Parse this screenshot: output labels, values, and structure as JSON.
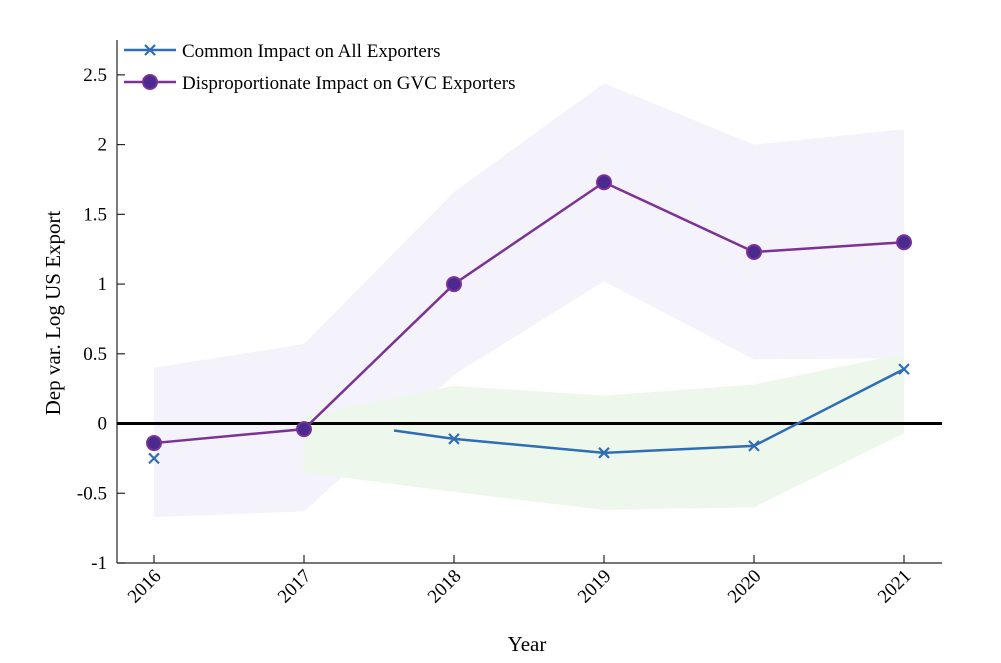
{
  "chart_data": {
    "type": "line",
    "title": "",
    "xlabel": "Year",
    "ylabel": "Dep var. Log US Export",
    "categories": [
      "2016",
      "2017",
      "2018",
      "2019",
      "2020",
      "2021"
    ],
    "ylim": [
      -1,
      2.75
    ],
    "yticks": [
      -1,
      -0.5,
      0,
      0.5,
      1,
      1.5,
      2,
      2.5
    ],
    "ytick_labels": [
      "-1",
      "-0.5",
      "0",
      "0.5",
      "1",
      "1.5",
      "2",
      "2.5"
    ],
    "legend_position": "top-left",
    "grid": false,
    "zero_line": 0,
    "series": [
      {
        "name": "Common Impact on All Exporters",
        "color": "#2F6DB5",
        "marker": "x",
        "band_color": "#EEF7EC",
        "x": [
          2016,
          2017,
          2017.6,
          2018,
          2019,
          2020,
          2021
        ],
        "values": [
          -0.25,
          null,
          -0.05,
          -0.11,
          -0.21,
          -0.16,
          0.39
        ],
        "markers_at": [
          2016,
          2018,
          2019,
          2020,
          2021
        ],
        "ci_x": [
          2016,
          2017,
          2018,
          2019,
          2020,
          2021
        ],
        "ci_low": [
          null,
          -0.35,
          -0.49,
          -0.62,
          -0.6,
          -0.07
        ],
        "ci_high": [
          null,
          0.05,
          0.27,
          0.2,
          0.28,
          0.5
        ]
      },
      {
        "name": "Disproportionate Impact on GVC Exporters",
        "color": "#7B3294",
        "marker": "circle",
        "marker_fill": "#4B2A8F",
        "band_color": "#F4F2FA",
        "x": [
          2016,
          2017,
          2018,
          2019,
          2020,
          2021
        ],
        "values": [
          -0.14,
          -0.04,
          1.0,
          1.73,
          1.23,
          1.3
        ],
        "ci_low": [
          -0.67,
          -0.63,
          0.35,
          1.02,
          0.46,
          0.47
        ],
        "ci_high": [
          0.4,
          0.57,
          1.66,
          2.44,
          2.0,
          2.11
        ]
      }
    ]
  },
  "colors": {
    "axis": "#262626",
    "zero_line": "#000000"
  }
}
